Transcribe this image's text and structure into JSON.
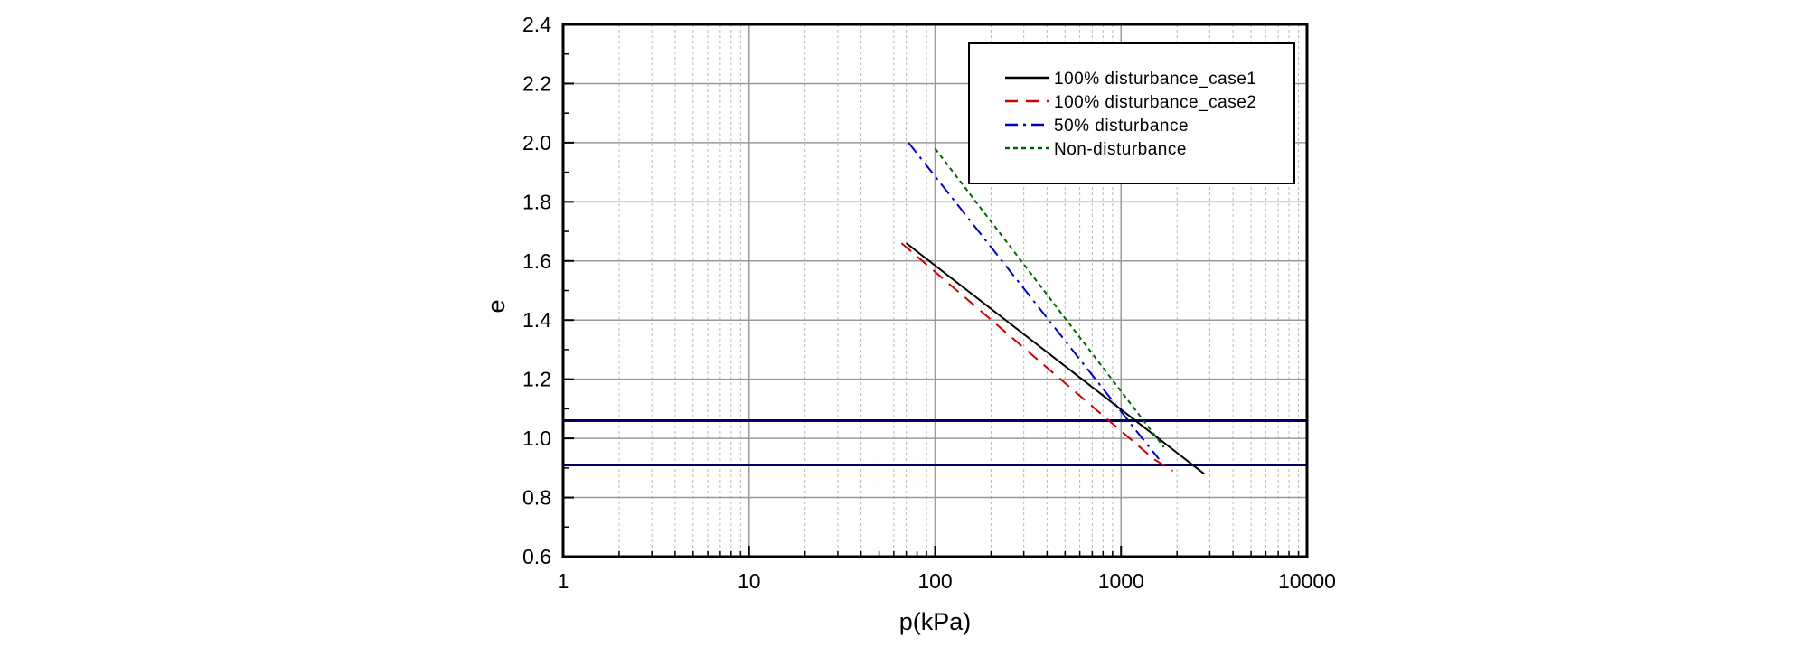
{
  "chart_data": {
    "type": "line",
    "title": "",
    "xlabel": "p(kPa)",
    "ylabel": "e",
    "x_scale": "log",
    "xlim": [
      1,
      10000
    ],
    "ylim": [
      0.6,
      2.4
    ],
    "x_ticks": [
      "1",
      "10",
      "100",
      "1000",
      "10000"
    ],
    "y_ticks": [
      "0.6",
      "0.8",
      "1.0",
      "1.2",
      "1.4",
      "1.6",
      "1.8",
      "2.0",
      "2.2",
      "2.4"
    ],
    "grid": true,
    "legend_position": "top-right",
    "series": [
      {
        "name": "100% disturbance_case1",
        "color": "#000000",
        "dash": "solid",
        "points": [
          [
            70,
            1.66
          ],
          [
            2800,
            0.88
          ]
        ]
      },
      {
        "name": "100% disturbance_case2",
        "color": "#cc0000",
        "dash": "dashed",
        "points": [
          [
            66,
            1.66
          ],
          [
            1500,
            0.93
          ],
          [
            1900,
            0.89
          ]
        ]
      },
      {
        "name": "50% disturbance",
        "color": "#0000cc",
        "dash": "dashdot",
        "points": [
          [
            72,
            2.0
          ],
          [
            1300,
            1.0
          ],
          [
            1600,
            0.93
          ]
        ]
      },
      {
        "name": "Non-disturbance",
        "color": "#006600",
        "dash": "dotted",
        "points": [
          [
            100,
            1.98
          ],
          [
            1700,
            0.97
          ]
        ]
      }
    ],
    "reference_lines": [
      {
        "y": 1.06,
        "color": "#000066"
      },
      {
        "y": 0.91,
        "color": "#000066"
      }
    ]
  }
}
